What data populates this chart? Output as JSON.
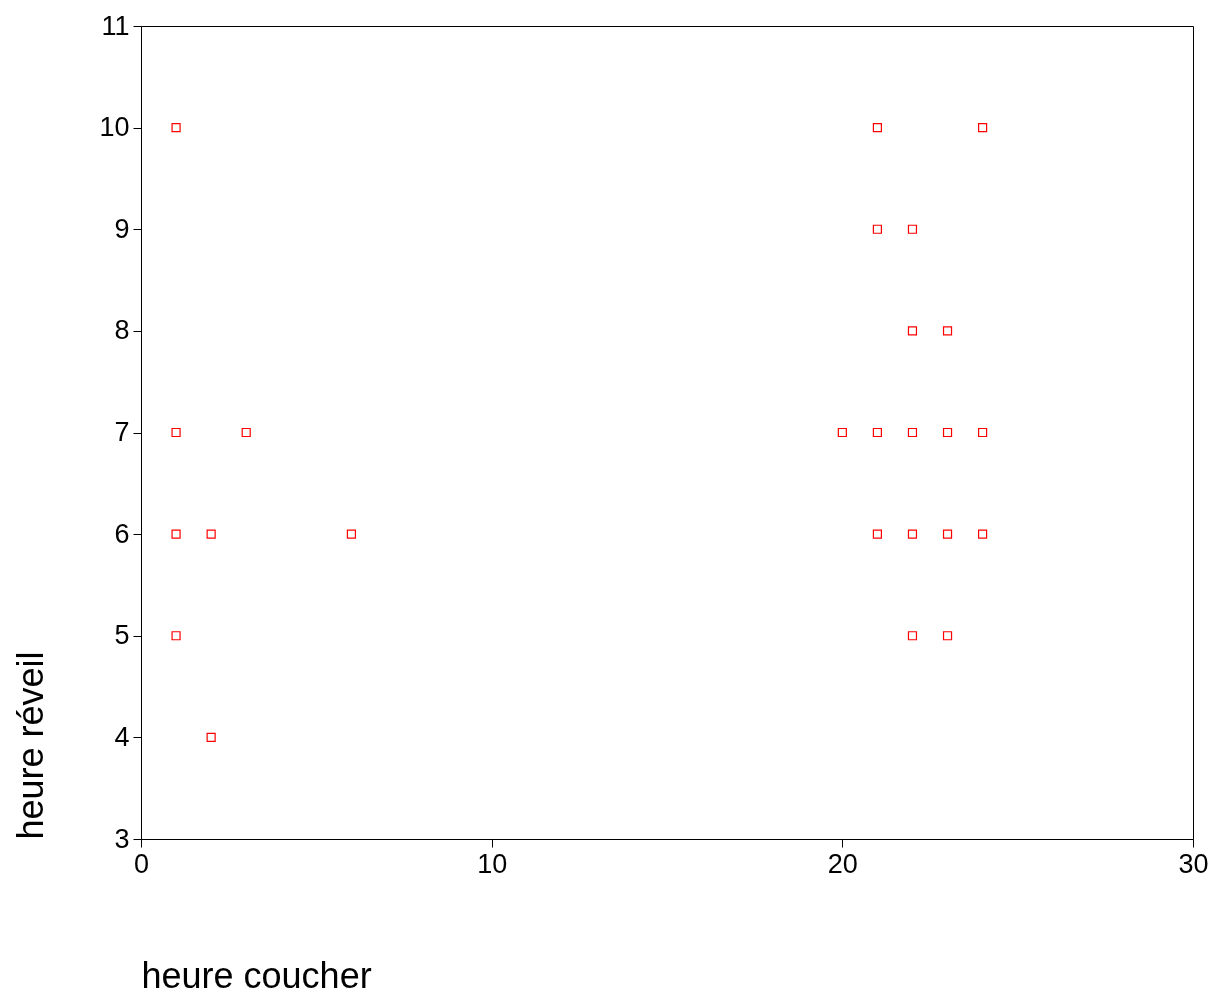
{
  "chart_data": {
    "type": "scatter",
    "xlabel": "heure coucher",
    "ylabel": "heure réveil",
    "x": [
      1,
      1,
      1,
      1,
      2,
      2,
      3,
      6,
      20,
      21,
      21,
      21,
      21,
      22,
      22,
      22,
      22,
      22,
      23,
      23,
      23,
      23,
      24,
      24,
      24
    ],
    "series": [
      {
        "color": "#ff0000",
        "values": [
          10,
          7,
          6,
          5,
          6,
          4,
          7,
          6,
          7,
          10,
          9,
          7,
          6,
          9,
          8,
          7,
          6,
          5,
          8,
          7,
          6,
          5,
          10,
          7,
          6
        ]
      }
    ],
    "xlim": [
      0,
      30
    ],
    "xticks": [
      0,
      10,
      20,
      30
    ],
    "ylim": [
      3,
      11
    ],
    "yticks": [
      3,
      4,
      5,
      6,
      7,
      8,
      9,
      10,
      11
    ],
    "marker": "square",
    "grid": false,
    "legend": false
  }
}
